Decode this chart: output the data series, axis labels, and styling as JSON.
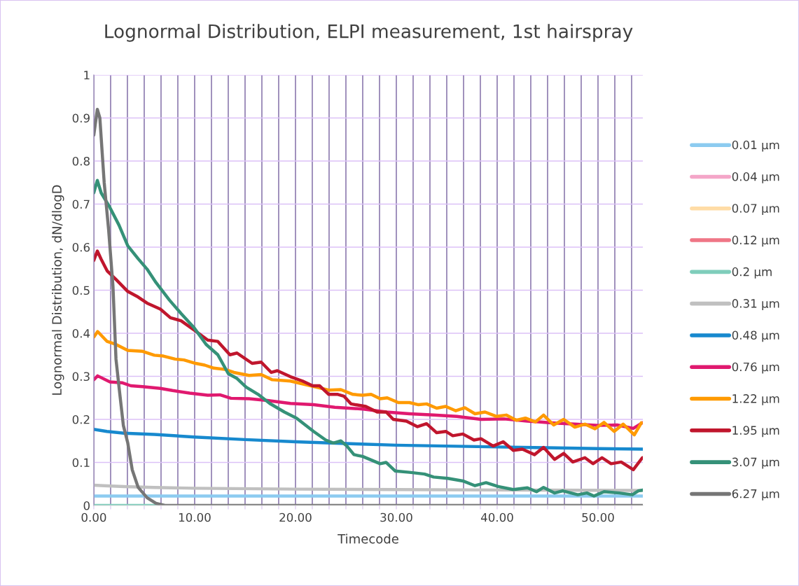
{
  "chart_data": {
    "type": "line",
    "title": "Lognormal Distribution, ELPI measurement, 1st hairspray",
    "xlabel": "Timecode",
    "ylabel": "Lognormal Distribution, dN/dlogD",
    "xlim": [
      0,
      54.45
    ],
    "ylim": [
      0,
      1
    ],
    "xticks": [
      {
        "value": 0,
        "label": "0.00"
      },
      {
        "value": 1.667,
        "label": null
      },
      {
        "value": 3.333,
        "label": null
      },
      {
        "value": 5,
        "label": null
      },
      {
        "value": 6.667,
        "label": null
      },
      {
        "value": 8.333,
        "label": null
      },
      {
        "value": 10,
        "label": "10.00"
      },
      {
        "value": 11.667,
        "label": null
      },
      {
        "value": 13.333,
        "label": null
      },
      {
        "value": 15,
        "label": null
      },
      {
        "value": 16.667,
        "label": null
      },
      {
        "value": 18.333,
        "label": null
      },
      {
        "value": 20,
        "label": "20.00"
      },
      {
        "value": 21.667,
        "label": null
      },
      {
        "value": 23.333,
        "label": null
      },
      {
        "value": 25,
        "label": null
      },
      {
        "value": 26.667,
        "label": null
      },
      {
        "value": 28.333,
        "label": null
      },
      {
        "value": 30,
        "label": "30.00"
      },
      {
        "value": 31.667,
        "label": null
      },
      {
        "value": 33.333,
        "label": null
      },
      {
        "value": 35,
        "label": null
      },
      {
        "value": 36.667,
        "label": null
      },
      {
        "value": 38.333,
        "label": null
      },
      {
        "value": 40,
        "label": "40.00"
      },
      {
        "value": 41.667,
        "label": null
      },
      {
        "value": 43.333,
        "label": null
      },
      {
        "value": 45,
        "label": null
      },
      {
        "value": 46.667,
        "label": null
      },
      {
        "value": 48.333,
        "label": null
      },
      {
        "value": 50,
        "label": "50.00"
      },
      {
        "value": 51.667,
        "label": null
      },
      {
        "value": 53.333,
        "label": null
      }
    ],
    "yticks": [
      0,
      0.1,
      0.2,
      0.3,
      0.4,
      0.5,
      0.6,
      0.7,
      0.8,
      0.9,
      1
    ],
    "grid": true,
    "legend": "right",
    "marker": "none",
    "line_style": "solid",
    "series": [
      {
        "name": "0.01 µm",
        "color": "#8ccbf0",
        "x": [
          0,
          54.45
        ],
        "values": [
          0.022,
          0.022
        ]
      },
      {
        "name": "0.04 µm",
        "color": "#f4a6c8"
      },
      {
        "name": "0.07 µm",
        "color": "#ffdca6"
      },
      {
        "name": "0.12 µm",
        "color": "#ef7686"
      },
      {
        "name": "0.2 µm",
        "color": "#7fcdbb",
        "x": [
          0,
          7
        ],
        "values": [
          0,
          0
        ]
      },
      {
        "name": "0.31 µm",
        "color": "#c0c0c0",
        "x": [
          0,
          1,
          3,
          6,
          10,
          20,
          30,
          40,
          54.45
        ],
        "values": [
          0.047,
          0.046,
          0.044,
          0.042,
          0.04,
          0.038,
          0.037,
          0.036,
          0.035
        ]
      },
      {
        "name": "0.48 µm",
        "color": "#1789ce",
        "x": [
          0,
          1.3,
          3,
          6,
          10,
          15,
          20,
          26,
          30,
          35,
          40,
          45,
          50,
          54.45
        ],
        "values": [
          0.177,
          0.172,
          0.168,
          0.165,
          0.159,
          0.153,
          0.148,
          0.143,
          0.14,
          0.138,
          0.136,
          0.134,
          0.132,
          0.131
        ]
      },
      {
        "name": "0.76 µm",
        "color": "#e0196f",
        "x": [
          0,
          0.38,
          1.6,
          2.8,
          3.67,
          4.84,
          6.6,
          7.8,
          9.5,
          11.3,
          12.5,
          13.6,
          15.4,
          17.2,
          19.5,
          21.8,
          23.9,
          26.7,
          29.0,
          31.3,
          33.7,
          36.0,
          38.4,
          40.7,
          43.0,
          45.4,
          47.7,
          50.1,
          51.9,
          53.5,
          54.4
        ],
        "values": [
          0.292,
          0.301,
          0.287,
          0.285,
          0.278,
          0.276,
          0.272,
          0.267,
          0.261,
          0.256,
          0.257,
          0.249,
          0.248,
          0.244,
          0.237,
          0.234,
          0.228,
          0.224,
          0.217,
          0.213,
          0.21,
          0.207,
          0.2,
          0.201,
          0.196,
          0.192,
          0.189,
          0.186,
          0.187,
          0.179,
          0.192
        ]
      },
      {
        "name": "1.22 µm",
        "color": "#ff9a00",
        "x": [
          0,
          0.38,
          1.32,
          2.2,
          3.37,
          4.84,
          6.0,
          6.9,
          8.06,
          8.94,
          10.1,
          11.0,
          11.9,
          13.0,
          13.9,
          15.4,
          16.6,
          17.7,
          19.5,
          21.5,
          23.3,
          24.5,
          25.7,
          26.65,
          27.5,
          28.4,
          29.1,
          30.2,
          31.3,
          32.2,
          33.0,
          34.0,
          34.9,
          35.9,
          36.8,
          37.8,
          38.8,
          39.9,
          40.9,
          41.9,
          42.8,
          43.8,
          44.6,
          45.6,
          46.6,
          47.7,
          48.7,
          49.7,
          50.6,
          51.6,
          52.5,
          53.6,
          54.3
        ],
        "values": [
          0.391,
          0.404,
          0.381,
          0.374,
          0.36,
          0.358,
          0.349,
          0.347,
          0.34,
          0.338,
          0.33,
          0.326,
          0.319,
          0.316,
          0.309,
          0.302,
          0.304,
          0.292,
          0.289,
          0.278,
          0.268,
          0.269,
          0.258,
          0.256,
          0.258,
          0.248,
          0.25,
          0.239,
          0.239,
          0.234,
          0.236,
          0.226,
          0.23,
          0.22,
          0.227,
          0.213,
          0.217,
          0.207,
          0.21,
          0.198,
          0.203,
          0.194,
          0.21,
          0.187,
          0.2,
          0.182,
          0.189,
          0.178,
          0.193,
          0.172,
          0.189,
          0.164,
          0.192
        ]
      },
      {
        "name": "1.95 µm",
        "color": "#c0162d",
        "x": [
          0,
          0.35,
          0.73,
          1.32,
          2.2,
          3.37,
          4.4,
          5.28,
          6.6,
          7.6,
          8.65,
          10.1,
          11.3,
          12.3,
          13.5,
          14.2,
          15.7,
          16.6,
          17.6,
          18.2,
          19.5,
          20.7,
          21.7,
          22.4,
          23.3,
          24.2,
          24.8,
          25.5,
          26.97,
          28.1,
          29.0,
          29.7,
          31.0,
          32.1,
          33.0,
          34.0,
          34.9,
          35.6,
          36.6,
          37.7,
          38.4,
          39.6,
          40.6,
          41.6,
          42.5,
          43.7,
          44.6,
          45.7,
          46.6,
          47.5,
          48.7,
          49.5,
          50.4,
          51.3,
          52.3,
          53.5,
          54.4
        ],
        "values": [
          0.569,
          0.591,
          0.572,
          0.545,
          0.525,
          0.497,
          0.484,
          0.47,
          0.456,
          0.436,
          0.429,
          0.405,
          0.384,
          0.381,
          0.35,
          0.354,
          0.33,
          0.333,
          0.309,
          0.313,
          0.299,
          0.289,
          0.278,
          0.278,
          0.258,
          0.258,
          0.254,
          0.236,
          0.23,
          0.217,
          0.217,
          0.2,
          0.196,
          0.183,
          0.19,
          0.169,
          0.172,
          0.162,
          0.166,
          0.152,
          0.155,
          0.138,
          0.148,
          0.128,
          0.131,
          0.118,
          0.135,
          0.107,
          0.121,
          0.101,
          0.111,
          0.097,
          0.111,
          0.097,
          0.101,
          0.083,
          0.111
        ]
      },
      {
        "name": "3.07 µm",
        "color": "#359178",
        "x": [
          0,
          0.35,
          0.73,
          1.6,
          2.5,
          3.37,
          4.4,
          5.28,
          6.16,
          7.5,
          8.65,
          9.97,
          11.14,
          12.3,
          13.34,
          14.2,
          15.1,
          16.3,
          17.45,
          18.9,
          20.1,
          21.8,
          23.0,
          23.75,
          24.5,
          25.1,
          25.8,
          26.65,
          28.4,
          28.98,
          29.9,
          31.3,
          32.8,
          33.7,
          35.1,
          36.6,
          37.8,
          38.9,
          40.1,
          41.6,
          43.0,
          43.9,
          44.6,
          45.7,
          46.5,
          48.0,
          48.9,
          49.6,
          50.6,
          52.1,
          53.4,
          54.0,
          54.45
        ],
        "values": [
          0.726,
          0.755,
          0.726,
          0.692,
          0.651,
          0.603,
          0.573,
          0.549,
          0.518,
          0.477,
          0.446,
          0.412,
          0.374,
          0.35,
          0.306,
          0.295,
          0.275,
          0.258,
          0.237,
          0.217,
          0.203,
          0.172,
          0.152,
          0.145,
          0.15,
          0.138,
          0.118,
          0.114,
          0.097,
          0.1,
          0.08,
          0.077,
          0.073,
          0.066,
          0.063,
          0.057,
          0.046,
          0.053,
          0.044,
          0.037,
          0.041,
          0.032,
          0.042,
          0.029,
          0.034,
          0.025,
          0.029,
          0.022,
          0.032,
          0.029,
          0.025,
          0.034,
          0.036
        ]
      },
      {
        "name": "6.27 µm",
        "color": "#767676",
        "x": [
          0,
          0.35,
          0.6,
          1.03,
          1.47,
          1.9,
          2.2,
          2.5,
          2.93,
          3.37,
          3.81,
          4.4,
          5.28,
          6.16,
          7.04,
          20,
          40,
          54.45
        ],
        "values": [
          0.86,
          0.92,
          0.9,
          0.75,
          0.64,
          0.51,
          0.34,
          0.275,
          0.186,
          0.145,
          0.083,
          0.042,
          0.018,
          0.005,
          0,
          0,
          0,
          0
        ]
      }
    ]
  }
}
